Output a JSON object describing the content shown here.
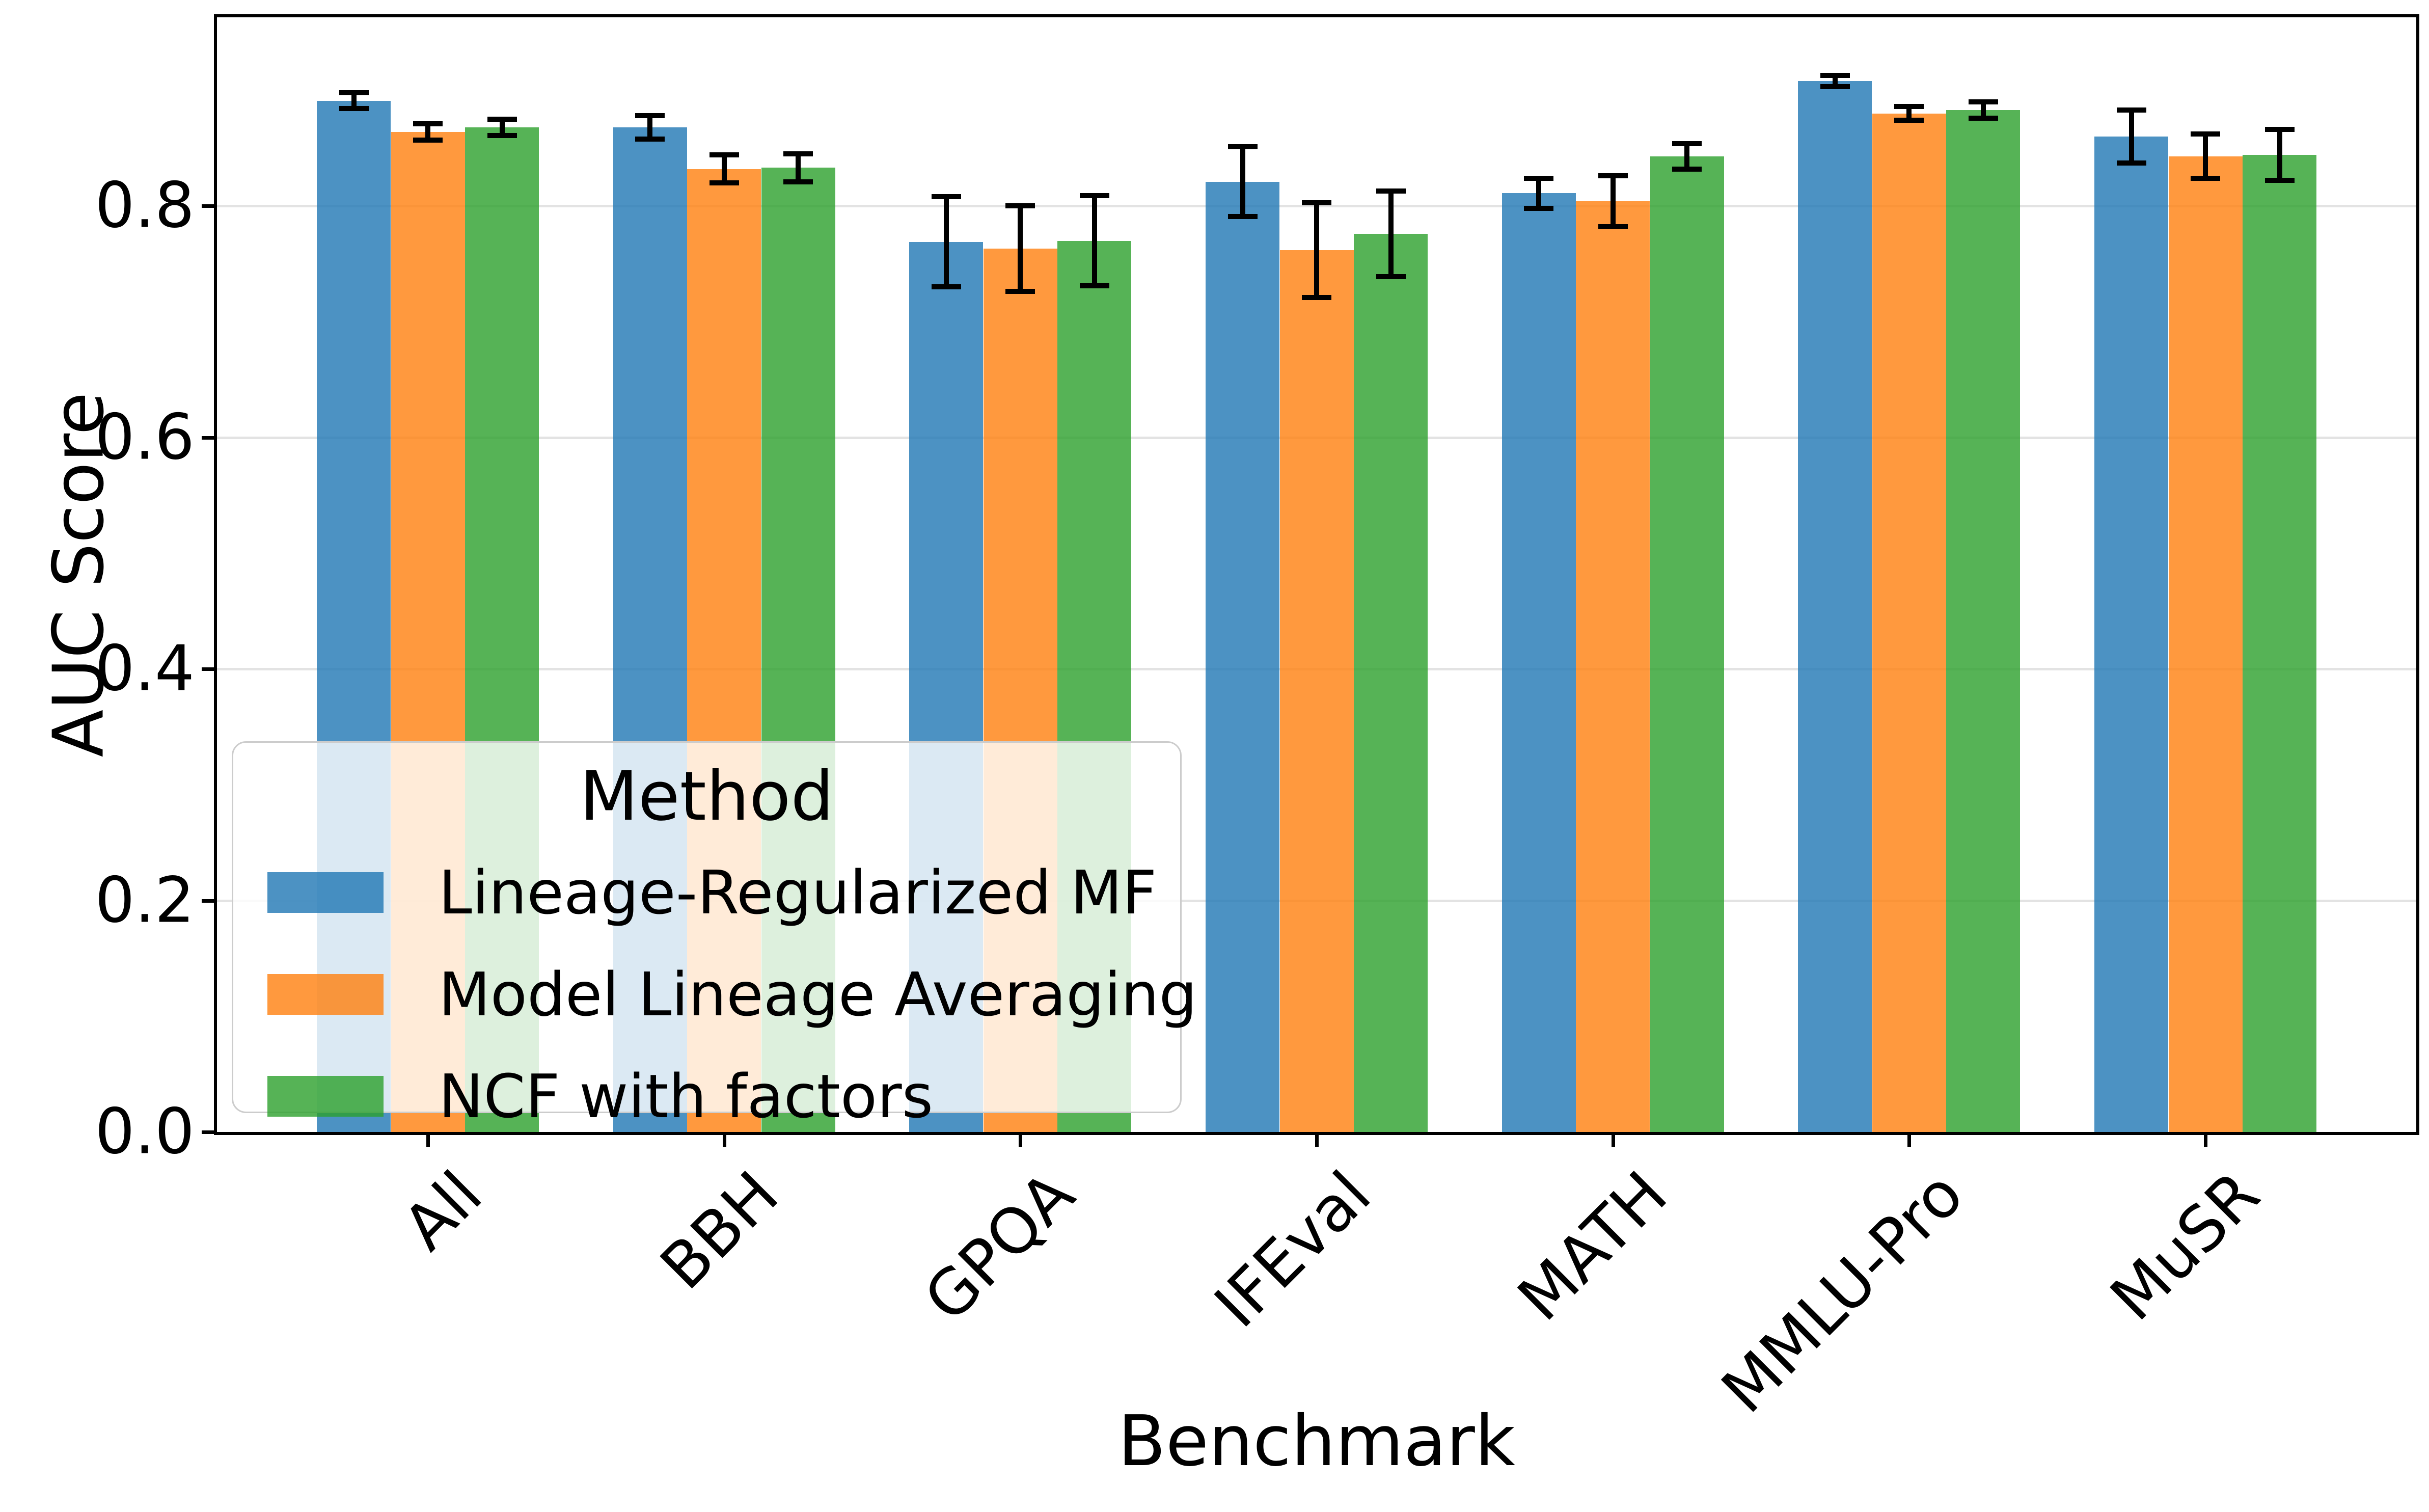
{
  "chart_data": {
    "type": "bar",
    "title": "",
    "xlabel": "Benchmark",
    "ylabel": "AUC Score",
    "categories": [
      "All",
      "BBH",
      "GPQA",
      "IFEval",
      "MATH",
      "MMLU-Pro",
      "MuSR"
    ],
    "series": [
      {
        "name": "Lineage-Regularized MF",
        "color": "rgba(31,119,180,0.8)",
        "values": [
          0.891,
          0.868,
          0.769,
          0.821,
          0.811,
          0.908,
          0.86
        ],
        "errors": [
          0.007,
          0.01,
          0.039,
          0.03,
          0.013,
          0.005,
          0.023
        ]
      },
      {
        "name": "Model Lineage Averaging",
        "color": "rgba(255,127,14,0.8)",
        "values": [
          0.864,
          0.832,
          0.763,
          0.762,
          0.804,
          0.88,
          0.843
        ],
        "errors": [
          0.007,
          0.012,
          0.037,
          0.041,
          0.022,
          0.006,
          0.019
        ]
      },
      {
        "name": "NCF with factors",
        "color": "rgba(44,160,44,0.8)",
        "values": [
          0.868,
          0.833,
          0.77,
          0.776,
          0.843,
          0.883,
          0.844
        ],
        "errors": [
          0.007,
          0.012,
          0.039,
          0.037,
          0.011,
          0.007,
          0.022
        ]
      }
    ],
    "legend_title": "Method",
    "legend_position": "lower left",
    "yticks": [
      0.0,
      0.2,
      0.4,
      0.6,
      0.8
    ],
    "ytick_labels": [
      "0.0",
      "0.2",
      "0.4",
      "0.6",
      "0.8"
    ],
    "ylim": [
      0,
      0.963
    ],
    "grid": "horizontal",
    "grid_color": "#e3e3e3",
    "error_bar_color": "#000000",
    "axis_color": "#000000"
  }
}
